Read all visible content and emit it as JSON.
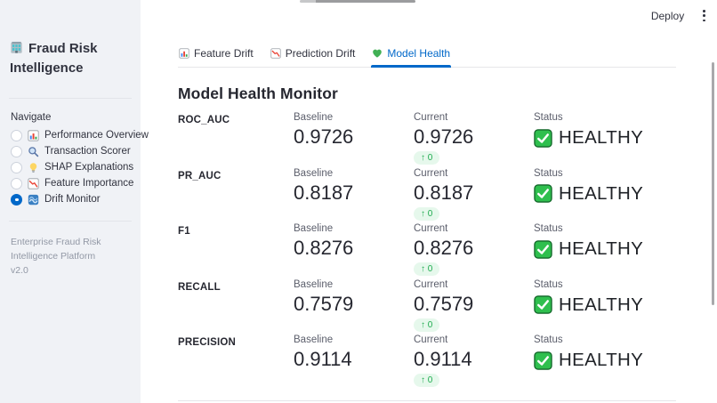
{
  "sidebar": {
    "title": "Fraud Risk Intelligence",
    "title_icon": "bank-building-icon",
    "navigate_label": "Navigate",
    "nav_items": [
      {
        "label": "Performance Overview",
        "icon": "bar-chart-icon",
        "selected": false
      },
      {
        "label": "Transaction Scorer",
        "icon": "magnifier-icon",
        "selected": false
      },
      {
        "label": "SHAP Explanations",
        "icon": "lightbulb-icon",
        "selected": false
      },
      {
        "label": "Feature Importance",
        "icon": "chart-decreasing-icon",
        "selected": false
      },
      {
        "label": "Drift Monitor",
        "icon": "drift-wave-icon",
        "selected": true
      }
    ],
    "footer_line1": "Enterprise Fraud Risk Intelligence Platform",
    "footer_line2": "v2.0"
  },
  "header": {
    "deploy_label": "Deploy",
    "menu_icon": "kebab-menu-icon"
  },
  "tabs": [
    {
      "label": "Feature Drift",
      "icon": "bar-chart-icon",
      "active": false
    },
    {
      "label": "Prediction Drift",
      "icon": "chart-decreasing-icon",
      "active": false
    },
    {
      "label": "Model Health",
      "icon": "green-heart-icon",
      "active": true
    }
  ],
  "main": {
    "heading": "Model Health Monitor",
    "columns": {
      "baseline": "Baseline",
      "current": "Current",
      "status": "Status"
    },
    "metrics": [
      {
        "name": "ROC_AUC",
        "baseline": "0.9726",
        "current": "0.9726",
        "delta": "↑ 0",
        "status": "HEALTHY"
      },
      {
        "name": "PR_AUC",
        "baseline": "0.8187",
        "current": "0.8187",
        "delta": "↑ 0",
        "status": "HEALTHY"
      },
      {
        "name": "F1",
        "baseline": "0.8276",
        "current": "0.8276",
        "delta": "↑ 0",
        "status": "HEALTHY"
      },
      {
        "name": "RECALL",
        "baseline": "0.7579",
        "current": "0.7579",
        "delta": "↑ 0",
        "status": "HEALTHY"
      },
      {
        "name": "PRECISION",
        "baseline": "0.9114",
        "current": "0.9114",
        "delta": "↑ 0",
        "status": "HEALTHY"
      }
    ]
  },
  "colors": {
    "primary_blue": "#0068c9",
    "healthy_green": "#2fbf4e",
    "delta_green": "#1fab4f",
    "sidebar_bg": "#f0f2f6"
  }
}
